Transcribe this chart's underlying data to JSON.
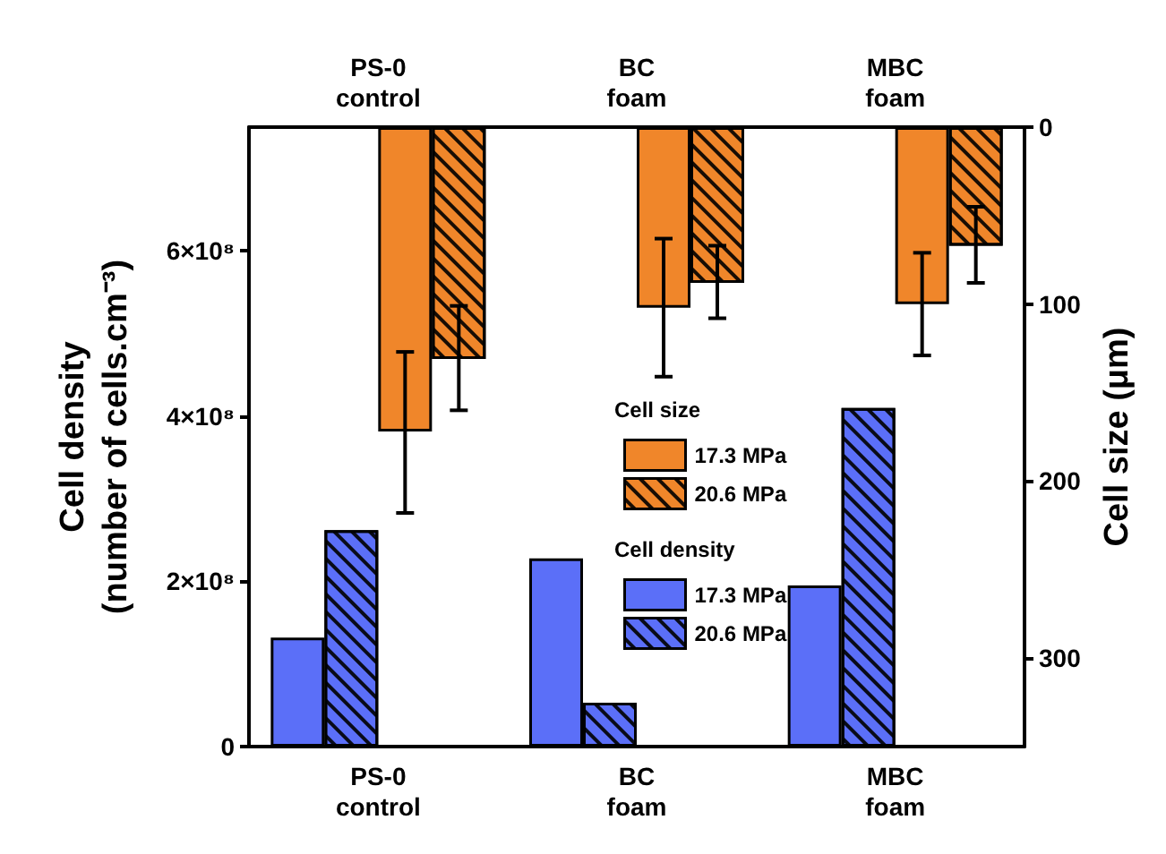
{
  "chart_data": {
    "type": "bar",
    "categories": [
      "PS-0\ncontrol",
      "BC\nfoam",
      "MBC\nfoam"
    ],
    "ylabel": "Cell density\n(number of cells.cm⁻³)",
    "y2label": "Cell size (μm)",
    "legend_title": [
      "Cell size",
      "Cell density"
    ],
    "legend": "center",
    "ylim": [
      0,
      750000000
    ],
    "yticks": [
      {
        "value": 0,
        "label": "0"
      },
      {
        "value": 200000000,
        "label": "2×10⁸"
      },
      {
        "value": 400000000,
        "label": "4×10⁸"
      },
      {
        "value": 600000000,
        "label": "6×10⁸"
      }
    ],
    "y2lim": [
      350,
      0
    ],
    "y2ticks": [
      0,
      100,
      200,
      300
    ],
    "grid": false,
    "series": [
      {
        "name": "17.3 MPa",
        "color": "#5b6ff8",
        "values": [
          132000000,
          228000000,
          195000000
        ]
      },
      {
        "name": "20.6 MPa",
        "color": "#5b6ff8",
        "values": [
          262000000,
          53000000,
          410000000
        ]
      },
      {
        "name": "17.3 MPa",
        "color": "#f0862a",
        "axis": "y2",
        "values": [
          172,
          102,
          100
        ],
        "errors": [
          [
            127,
            218
          ],
          [
            63,
            141
          ],
          [
            71,
            129
          ]
        ]
      },
      {
        "name": "20.6 MPa",
        "color": "#f0862a",
        "axis": "y2",
        "values": [
          131,
          88,
          67
        ],
        "errors": [
          [
            101,
            160
          ],
          [
            67,
            108
          ],
          [
            45,
            88
          ]
        ]
      }
    ]
  }
}
